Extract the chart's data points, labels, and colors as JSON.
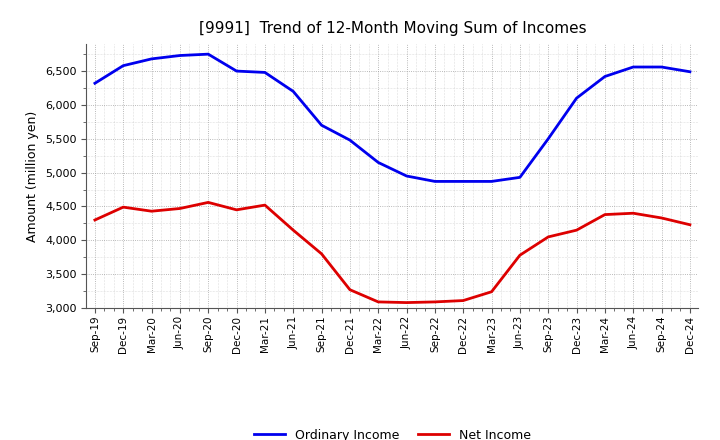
{
  "title": "[9991]  Trend of 12-Month Moving Sum of Incomes",
  "ylabel": "Amount (million yen)",
  "ylim": [
    3000,
    6900
  ],
  "yticks": [
    3000,
    3500,
    4000,
    4500,
    5000,
    5500,
    6000,
    6500
  ],
  "background_color": "#ffffff",
  "plot_bg_color": "#ffffff",
  "grid_color": "#999999",
  "legend_labels": [
    "Ordinary Income",
    "Net Income"
  ],
  "line_colors": [
    "#0000ee",
    "#dd0000"
  ],
  "line_width": 2.0,
  "x_labels": [
    "Sep-19",
    "Dec-19",
    "Mar-20",
    "Jun-20",
    "Sep-20",
    "Dec-20",
    "Mar-21",
    "Jun-21",
    "Sep-21",
    "Dec-21",
    "Mar-22",
    "Jun-22",
    "Sep-22",
    "Dec-22",
    "Mar-23",
    "Jun-23",
    "Sep-23",
    "Dec-23",
    "Mar-24",
    "Jun-24",
    "Sep-24",
    "Dec-24"
  ],
  "ordinary_income": [
    6320,
    6580,
    6680,
    6730,
    6750,
    6500,
    6480,
    6200,
    5700,
    5480,
    5150,
    4950,
    4870,
    4870,
    4870,
    4930,
    5500,
    6100,
    6420,
    6560,
    6560,
    6490
  ],
  "net_income": [
    4300,
    4490,
    4430,
    4470,
    4560,
    4450,
    4520,
    4150,
    3800,
    3270,
    3090,
    3080,
    3090,
    3110,
    3240,
    3780,
    4050,
    4150,
    4380,
    4400,
    4330,
    4230
  ]
}
